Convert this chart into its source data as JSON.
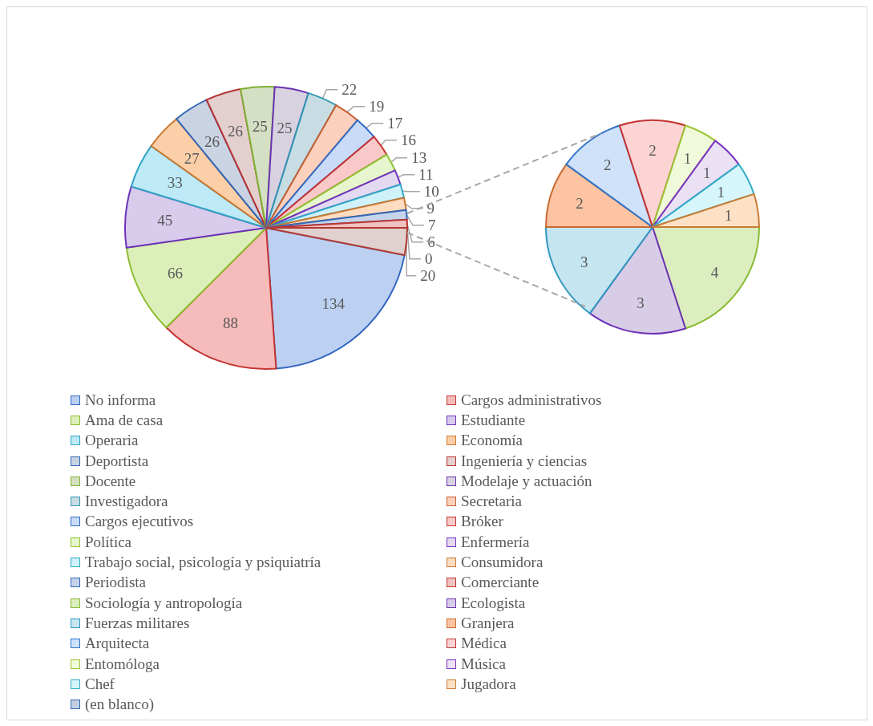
{
  "chart_data": [
    {
      "type": "pie",
      "legend": "bottom",
      "value_labels": [
        "134",
        "88",
        "66",
        "45",
        "33",
        "27",
        "26",
        "26",
        "25",
        "25",
        "22",
        "19",
        "17",
        "16",
        "13",
        "11",
        "10",
        "9",
        "7",
        "6",
        "0",
        "20"
      ],
      "categories": [
        "No informa",
        "Cargos administrativos",
        "Ama de casa",
        "Estudiante",
        "Operaria",
        "Economía",
        "Deportista",
        "Ingeniería y ciencias",
        "Docente",
        "Modelaje y actuación",
        "Investigadora",
        "Secretaria",
        "Cargos ejecutivos",
        "Bróker",
        "Política",
        "Enfermería",
        "Trabajo social, psicología y psiquiatría",
        "Consumidora",
        "Periodista",
        "Comerciante",
        "(en blanco)",
        null
      ],
      "values": [
        134,
        88,
        66,
        45,
        33,
        27,
        26,
        26,
        25,
        25,
        22,
        19,
        17,
        16,
        13,
        11,
        10,
        9,
        7,
        6,
        0,
        20
      ],
      "colors": [
        "#bcd0f2",
        "#f6bcbb",
        "#dcefb8",
        "#d9cbec",
        "#bdeaf6",
        "#fdcfa8",
        "#c9d3e2",
        "#e4cfcf",
        "#d4dfc3",
        "#d8d2e0",
        "#c8dde3",
        "#fbd0bd",
        "#c9dbf7",
        "#f9c8c8",
        "#e8f6cf",
        "#e3d9f0",
        "#cff2fa",
        "#fddcc0",
        "#c6d4ea",
        "#f0c2c1",
        "#c3cfe0",
        "#e0d0cf"
      ]
    },
    {
      "type": "pie",
      "legend": "bottom",
      "data_labels": true,
      "categories": [
        "Sociología y antropología",
        "Ecologista",
        "Fuerzas militares",
        "Granjera",
        "Arquitecta",
        "Médica",
        "Entomóloga",
        "Música",
        "Chef",
        "Jugadora"
      ],
      "values": [
        4,
        3,
        3,
        2,
        2,
        2,
        1,
        1,
        1,
        1
      ],
      "colors": [
        "#dcedc0",
        "#d8cde6",
        "#c5e5f1",
        "#fcc4a2",
        "#cfe2fa",
        "#fcd4d4",
        "#f0f9d9",
        "#ebe1f5",
        "#d6f6fc",
        "#fde1c6"
      ]
    }
  ]
}
